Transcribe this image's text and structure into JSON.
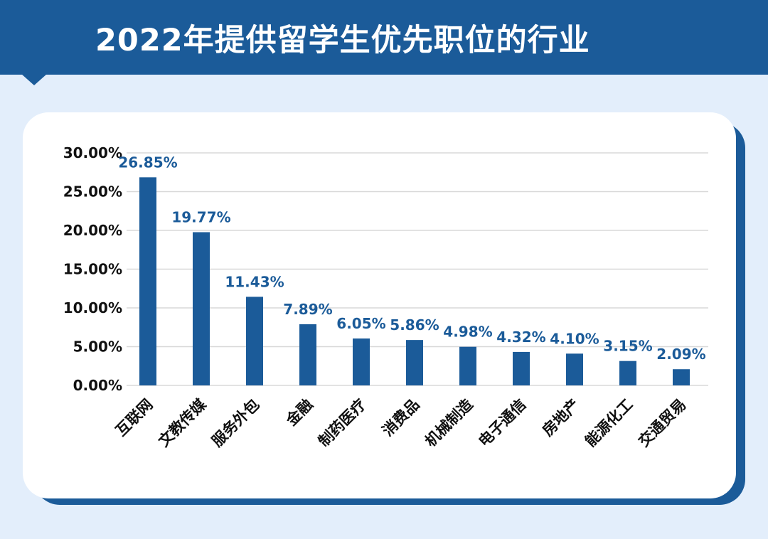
{
  "header": {
    "title": "2022年提供留学生优先职位的行业"
  },
  "chart_data": {
    "type": "bar",
    "title": "2022年提供留学生优先职位的行业",
    "xlabel": "",
    "ylabel": "",
    "categories": [
      "互联网",
      "文教传媒",
      "服务外包",
      "金融",
      "制药医疗",
      "消费品",
      "机械制造",
      "电子通信",
      "房地产",
      "能源化工",
      "交通贸易"
    ],
    "values": [
      26.85,
      19.77,
      11.43,
      7.89,
      6.05,
      5.86,
      4.98,
      4.32,
      4.1,
      3.15,
      2.09
    ],
    "data_labels": [
      "26.85%",
      "19.77%",
      "11.43%",
      "7.89%",
      "6.05%",
      "5.86%",
      "4.98%",
      "4.32%",
      "4.10%",
      "3.15%",
      "2.09%"
    ],
    "ylim": [
      0,
      30
    ],
    "yticks": [
      0,
      5,
      10,
      15,
      20,
      25,
      30
    ],
    "ytick_labels": [
      "0.00%",
      "5.00%",
      "10.00%",
      "15.00%",
      "20.00%",
      "25.00%",
      "30.00%"
    ],
    "grid": true,
    "legend": "none",
    "colors": {
      "bar": "#1b5b99",
      "header": "#1b5b99",
      "background": "#e3eefb",
      "grid": "#d8d8d8"
    }
  }
}
